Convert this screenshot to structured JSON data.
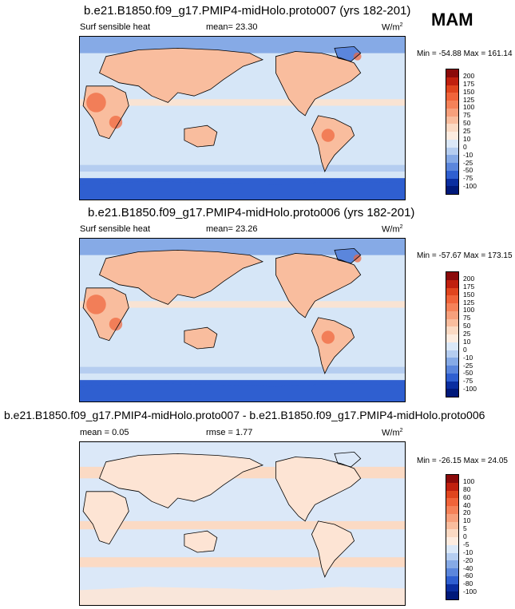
{
  "season": "MAM",
  "panels": [
    {
      "title": "b.e21.B1850.f09_g17.PMIP4-midHolo.proto007 (yrs 182-201)",
      "left_label": "Surf sensible heat",
      "mean_label": "mean=",
      "mean_value": "23.30",
      "units": "W/m",
      "units_sup": "2",
      "min_max": "Min = -54.88 Max = 161.14",
      "colorbar_labels": [
        "200",
        "175",
        "150",
        "125",
        "100",
        "75",
        "50",
        "25",
        "10",
        "0",
        "-10",
        "-25",
        "-50",
        "-75",
        "-100"
      ]
    },
    {
      "title": "b.e21.B1850.f09_g17.PMIP4-midHolo.proto006 (yrs 182-201)",
      "left_label": "Surf sensible heat",
      "mean_label": "mean=",
      "mean_value": "23.26",
      "units": "W/m",
      "units_sup": "2",
      "min_max": "Min = -57.67 Max = 173.15",
      "colorbar_labels": [
        "200",
        "175",
        "150",
        "125",
        "100",
        "75",
        "50",
        "25",
        "10",
        "0",
        "-10",
        "-25",
        "-50",
        "-75",
        "-100"
      ]
    },
    {
      "title": "b.e21.B1850.f09_g17.PMIP4-midHolo.proto007 - b.e21.B1850.f09_g17.PMIP4-midHolo.proto006",
      "left_label": "mean =",
      "left_value": "0.05",
      "mean_label": "rmse =",
      "mean_value": "1.77",
      "units": "W/m",
      "units_sup": "2",
      "min_max": "Min = -26.15 Max = 24.05",
      "colorbar_labels": [
        "100",
        "80",
        "60",
        "40",
        "20",
        "10",
        "5",
        "0",
        "-5",
        "-10",
        "-20",
        "-40",
        "-60",
        "-80",
        "-100"
      ]
    }
  ],
  "chart_data": [
    {
      "type": "heatmap",
      "title": "b.e21.B1850.f09_g17.PMIP4-midHolo.proto007 (yrs 182-201)",
      "variable": "Surf sensible heat",
      "units": "W/m2",
      "mean": 23.3,
      "min": -54.88,
      "max": 161.14,
      "contour_levels": [
        -100,
        -75,
        -50,
        -25,
        -10,
        0,
        10,
        25,
        50,
        75,
        100,
        125,
        150,
        175,
        200
      ]
    },
    {
      "type": "heatmap",
      "title": "b.e21.B1850.f09_g17.PMIP4-midHolo.proto006 (yrs 182-201)",
      "variable": "Surf sensible heat",
      "units": "W/m2",
      "mean": 23.26,
      "min": -57.67,
      "max": 173.15,
      "contour_levels": [
        -100,
        -75,
        -50,
        -25,
        -10,
        0,
        10,
        25,
        50,
        75,
        100,
        125,
        150,
        175,
        200
      ]
    },
    {
      "type": "heatmap",
      "title": "b.e21.B1850.f09_g17.PMIP4-midHolo.proto007 - b.e21.B1850.f09_g17.PMIP4-midHolo.proto006",
      "units": "W/m2",
      "mean": 0.05,
      "rmse": 1.77,
      "min": -26.15,
      "max": 24.05,
      "contour_levels": [
        -100,
        -80,
        -60,
        -40,
        -20,
        -10,
        -5,
        0,
        5,
        10,
        20,
        40,
        60,
        80,
        100
      ]
    }
  ],
  "colors": {
    "scale": [
      "#8b0a0a",
      "#c0200e",
      "#e0451e",
      "#f0643a",
      "#f58259",
      "#f7a07c",
      "#f9bd9e",
      "#fbdac4",
      "#fdece0",
      "#dbe8f8",
      "#b5cdf0",
      "#86aae6",
      "#5b86dc",
      "#2f5fd0",
      "#0a2ea0",
      "#00197a"
    ]
  }
}
